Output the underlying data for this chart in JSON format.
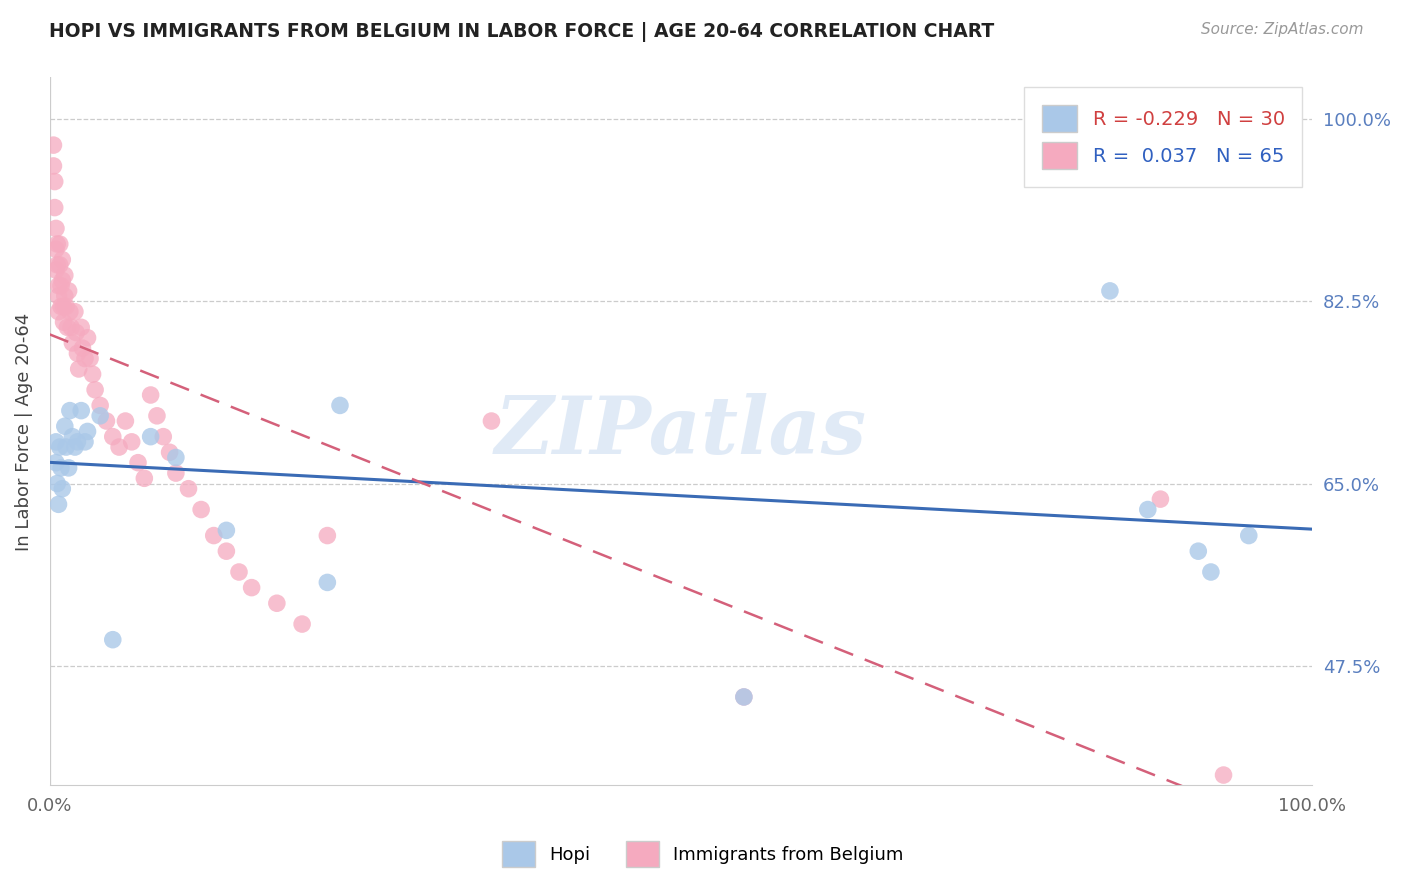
{
  "title": "HOPI VS IMMIGRANTS FROM BELGIUM IN LABOR FORCE | AGE 20-64 CORRELATION CHART",
  "source": "Source: ZipAtlas.com",
  "ylabel": "In Labor Force | Age 20-64",
  "xlim": [
    0.0,
    1.0
  ],
  "ylim": [
    0.36,
    1.04
  ],
  "yticks": [
    0.475,
    0.65,
    0.825,
    1.0
  ],
  "ytick_labels": [
    "47.5%",
    "65.0%",
    "82.5%",
    "100.0%"
  ],
  "xticks": [
    0.0,
    0.2,
    0.4,
    0.6,
    0.8,
    1.0
  ],
  "xtick_labels": [
    "0.0%",
    "",
    "",
    "",
    "",
    "100.0%"
  ],
  "hopi_R": -0.229,
  "hopi_N": 30,
  "belgium_R": 0.037,
  "belgium_N": 65,
  "hopi_color": "#aac8e8",
  "belgium_color": "#f5aabf",
  "hopi_line_color": "#3a6bb5",
  "belgium_line_color": "#d4607a",
  "hopi_x": [
    0.005,
    0.005,
    0.006,
    0.007,
    0.008,
    0.009,
    0.01,
    0.012,
    0.013,
    0.015,
    0.016,
    0.018,
    0.02,
    0.022,
    0.025,
    0.028,
    0.03,
    0.04,
    0.05,
    0.08,
    0.1,
    0.14,
    0.22,
    0.23,
    0.55,
    0.84,
    0.87,
    0.91,
    0.92,
    0.95
  ],
  "hopi_y": [
    0.69,
    0.67,
    0.65,
    0.63,
    0.685,
    0.665,
    0.645,
    0.705,
    0.685,
    0.665,
    0.72,
    0.695,
    0.685,
    0.69,
    0.72,
    0.69,
    0.7,
    0.715,
    0.5,
    0.695,
    0.675,
    0.605,
    0.555,
    0.725,
    0.445,
    0.835,
    0.625,
    0.585,
    0.565,
    0.6
  ],
  "belgium_x": [
    0.003,
    0.003,
    0.004,
    0.004,
    0.005,
    0.005,
    0.005,
    0.006,
    0.006,
    0.007,
    0.007,
    0.007,
    0.008,
    0.008,
    0.009,
    0.009,
    0.01,
    0.01,
    0.011,
    0.011,
    0.012,
    0.012,
    0.013,
    0.014,
    0.015,
    0.016,
    0.017,
    0.018,
    0.02,
    0.021,
    0.022,
    0.023,
    0.025,
    0.026,
    0.028,
    0.03,
    0.032,
    0.034,
    0.036,
    0.04,
    0.045,
    0.05,
    0.055,
    0.06,
    0.065,
    0.07,
    0.075,
    0.08,
    0.085,
    0.09,
    0.095,
    0.1,
    0.11,
    0.12,
    0.13,
    0.14,
    0.15,
    0.16,
    0.18,
    0.2,
    0.22,
    0.35,
    0.55,
    0.88,
    0.93
  ],
  "belgium_y": [
    0.975,
    0.955,
    0.94,
    0.915,
    0.895,
    0.875,
    0.855,
    0.88,
    0.86,
    0.84,
    0.83,
    0.815,
    0.88,
    0.86,
    0.84,
    0.82,
    0.865,
    0.845,
    0.82,
    0.805,
    0.85,
    0.83,
    0.82,
    0.8,
    0.835,
    0.815,
    0.8,
    0.785,
    0.815,
    0.795,
    0.775,
    0.76,
    0.8,
    0.78,
    0.77,
    0.79,
    0.77,
    0.755,
    0.74,
    0.725,
    0.71,
    0.695,
    0.685,
    0.71,
    0.69,
    0.67,
    0.655,
    0.735,
    0.715,
    0.695,
    0.68,
    0.66,
    0.645,
    0.625,
    0.6,
    0.585,
    0.565,
    0.55,
    0.535,
    0.515,
    0.6,
    0.71,
    0.445,
    0.635,
    0.37
  ]
}
